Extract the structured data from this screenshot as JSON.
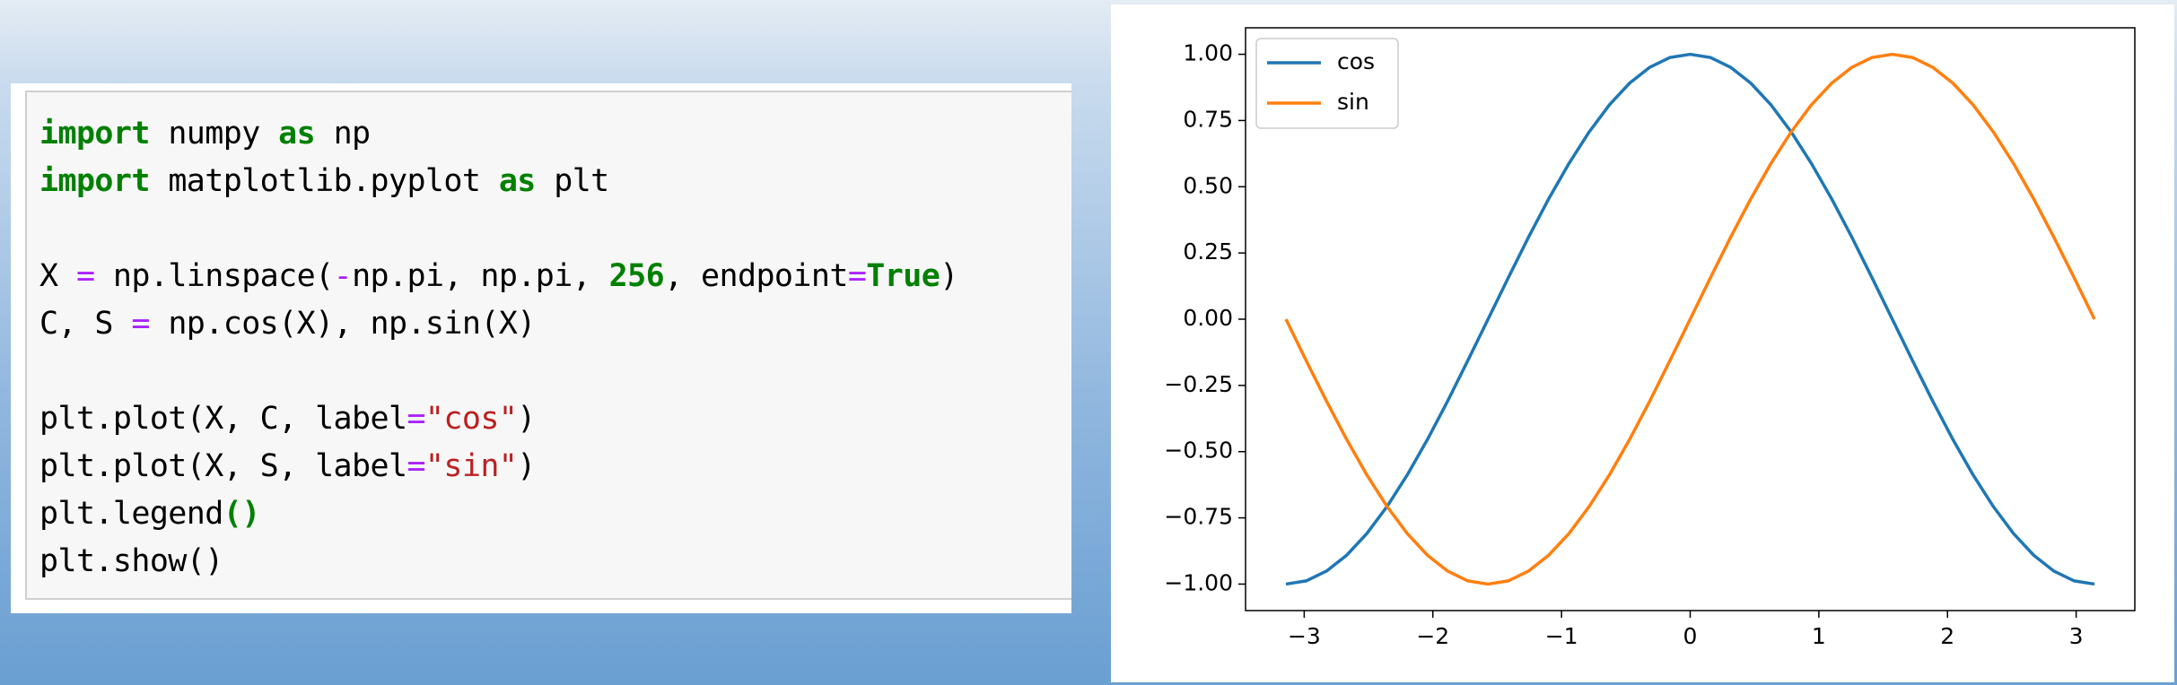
{
  "code": {
    "blocks": [
      [
        [
          {
            "text": "import",
            "color": "#008000"
          },
          {
            "text": " numpy ",
            "color": "#000000"
          },
          {
            "text": "as",
            "color": "#008000"
          },
          {
            "text": " np",
            "color": "#000000"
          }
        ],
        [
          {
            "text": "import",
            "color": "#008000"
          },
          {
            "text": " matplotlib.pyplot ",
            "color": "#000000"
          },
          {
            "text": "as",
            "color": "#008000"
          },
          {
            "text": " plt",
            "color": "#000000"
          }
        ]
      ],
      [
        [
          {
            "text": "X ",
            "color": "#000000"
          },
          {
            "text": "=",
            "color": "#aa22ff"
          },
          {
            "text": " np.linspace(",
            "color": "#000000"
          },
          {
            "text": "-",
            "color": "#aa22ff"
          },
          {
            "text": "np.pi, np.pi, ",
            "color": "#000000"
          },
          {
            "text": "256",
            "color": "#008000"
          },
          {
            "text": ", endpoint",
            "color": "#000000"
          },
          {
            "text": "=",
            "color": "#aa22ff"
          },
          {
            "text": "True",
            "color": "#008000"
          },
          {
            "text": ")",
            "color": "#000000"
          }
        ],
        [
          {
            "text": "C, S ",
            "color": "#000000"
          },
          {
            "text": "=",
            "color": "#aa22ff"
          },
          {
            "text": " np.cos(X), np.sin(X)",
            "color": "#000000"
          }
        ]
      ],
      [
        [
          {
            "text": "plt.plot(X, C, label",
            "color": "#000000"
          },
          {
            "text": "=",
            "color": "#aa22ff"
          },
          {
            "text": "\"cos\"",
            "color": "#ba2121"
          },
          {
            "text": ")",
            "color": "#000000"
          }
        ],
        [
          {
            "text": "plt.plot(X, S, label",
            "color": "#000000"
          },
          {
            "text": "=",
            "color": "#aa22ff"
          },
          {
            "text": "\"sin\"",
            "color": "#ba2121"
          },
          {
            "text": ")",
            "color": "#000000"
          }
        ],
        [
          {
            "text": "plt.legend",
            "color": "#000000"
          },
          {
            "text": "()",
            "color": "#008000"
          }
        ],
        [
          {
            "text": "plt.show()",
            "color": "#000000"
          }
        ]
      ]
    ]
  },
  "chart_data": {
    "type": "line",
    "x": [
      -3.142,
      -2.985,
      -2.827,
      -2.67,
      -2.513,
      -2.356,
      -2.199,
      -2.042,
      -1.885,
      -1.728,
      -1.571,
      -1.414,
      -1.257,
      -1.1,
      -0.942,
      -0.785,
      -0.628,
      -0.471,
      -0.314,
      -0.157,
      0,
      0.157,
      0.314,
      0.471,
      0.628,
      0.785,
      0.942,
      1.1,
      1.257,
      1.414,
      1.571,
      1.728,
      1.885,
      2.042,
      2.199,
      2.356,
      2.513,
      2.67,
      2.827,
      2.985,
      3.142
    ],
    "series": [
      {
        "name": "cos",
        "color": "#1f77b4",
        "values": [
          -1,
          -0.988,
          -0.951,
          -0.891,
          -0.809,
          -0.707,
          -0.588,
          -0.454,
          -0.309,
          -0.156,
          0,
          0.156,
          0.309,
          0.454,
          0.588,
          0.707,
          0.809,
          0.891,
          0.951,
          0.988,
          1,
          0.988,
          0.951,
          0.891,
          0.809,
          0.707,
          0.588,
          0.454,
          0.309,
          0.156,
          0,
          -0.156,
          -0.309,
          -0.454,
          -0.588,
          -0.707,
          -0.809,
          -0.891,
          -0.951,
          -0.988,
          -1
        ]
      },
      {
        "name": "sin",
        "color": "#ff7f0e",
        "values": [
          0,
          -0.156,
          -0.309,
          -0.454,
          -0.588,
          -0.707,
          -0.809,
          -0.891,
          -0.951,
          -0.988,
          -1,
          -0.988,
          -0.951,
          -0.891,
          -0.809,
          -0.707,
          -0.588,
          -0.454,
          -0.309,
          -0.156,
          0,
          0.156,
          0.309,
          0.454,
          0.588,
          0.707,
          0.809,
          0.891,
          0.951,
          0.988,
          1,
          0.988,
          0.951,
          0.891,
          0.809,
          0.707,
          0.588,
          0.454,
          0.309,
          0.156,
          0
        ]
      }
    ],
    "xlim": [
      -3.456,
      3.456
    ],
    "ylim": [
      -1.1,
      1.1
    ],
    "xticks": [
      {
        "value": -3,
        "label": "−3"
      },
      {
        "value": -2,
        "label": "−2"
      },
      {
        "value": -1,
        "label": "−1"
      },
      0,
      1,
      2,
      3
    ],
    "yticks": [
      {
        "value": -1,
        "label": "−1.00"
      },
      {
        "value": -0.75,
        "label": "−0.75"
      },
      {
        "value": -0.5,
        "label": "−0.50"
      },
      {
        "value": -0.25,
        "label": "−0.25"
      },
      {
        "value": 0,
        "label": "0.00"
      },
      {
        "value": 0.25,
        "label": "0.25"
      },
      {
        "value": 0.5,
        "label": "0.50"
      },
      {
        "value": 0.75,
        "label": "0.75"
      },
      {
        "value": 1,
        "label": "1.00"
      }
    ],
    "grid": false,
    "legend": "upper left"
  }
}
